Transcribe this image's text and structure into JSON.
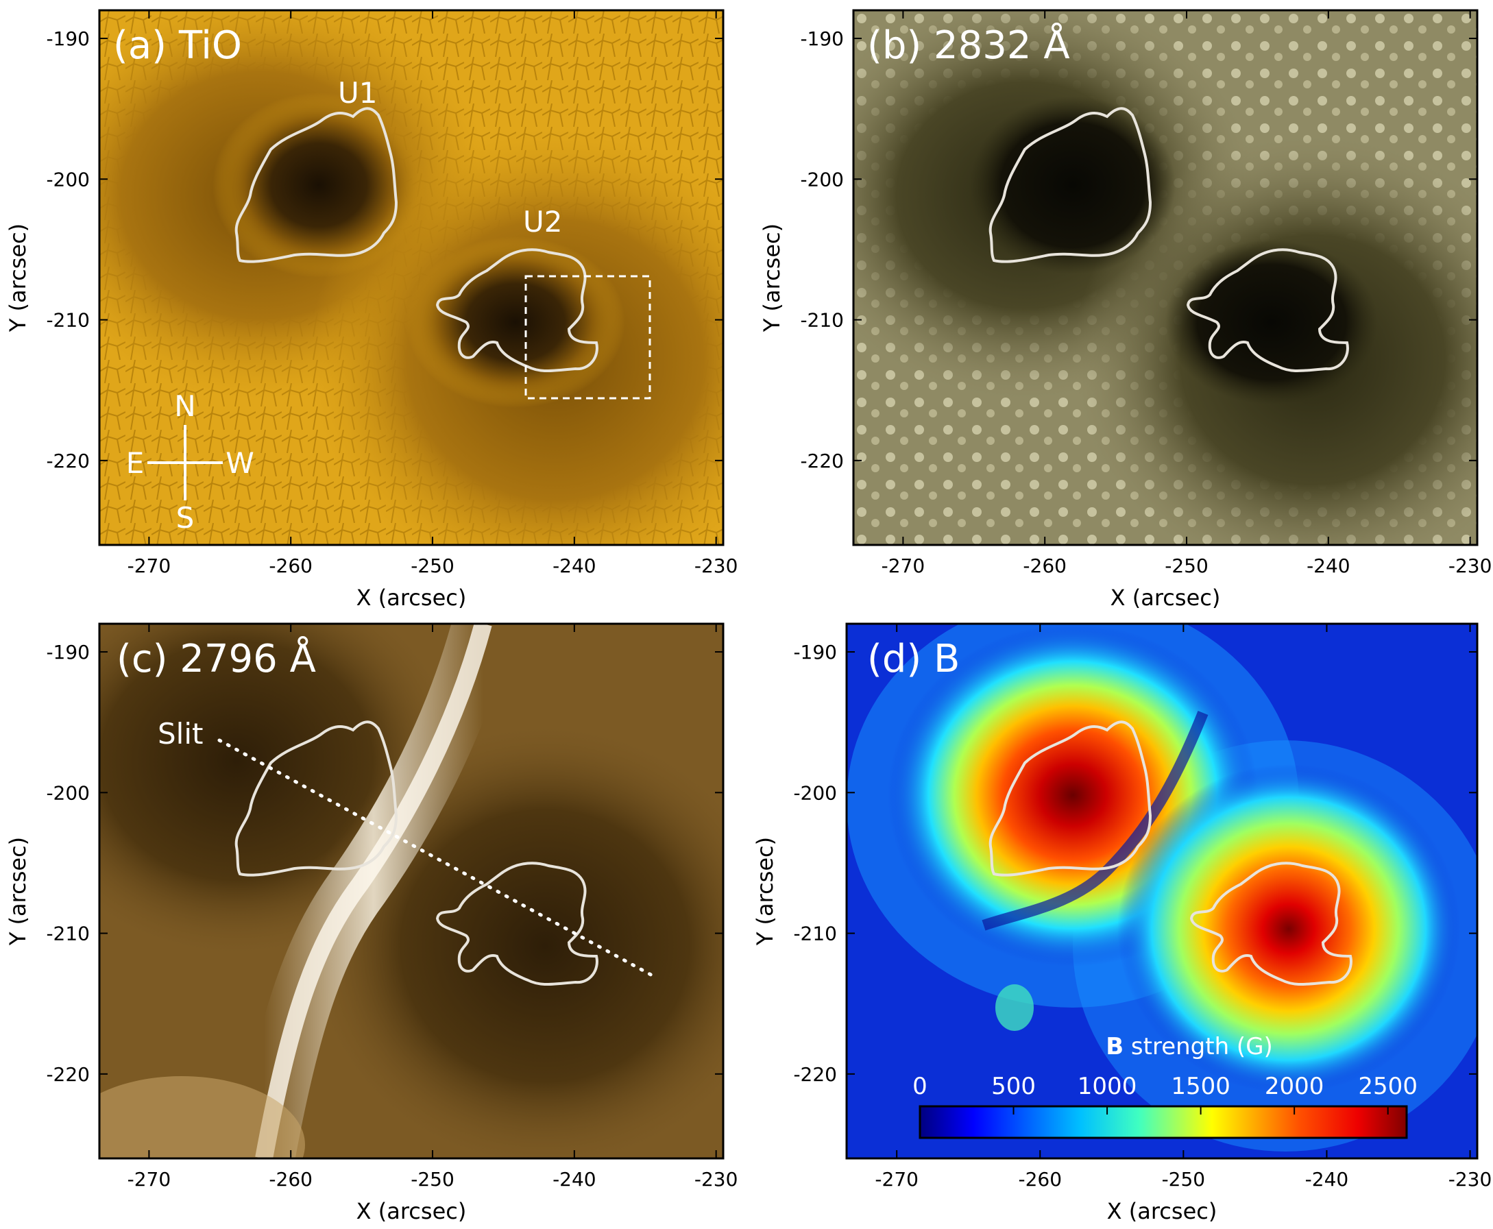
{
  "colors": {
    "tio_base": "#d49a14",
    "c2832_base": "#8a845e",
    "c2796_base": "#7c5a24",
    "b_low": "#0b2fd6",
    "contour": "#e8e4dc"
  },
  "xaxis": {
    "label": "X (arcsec)",
    "range": [
      -273.5,
      -229.5
    ],
    "ticks": [
      "-270",
      "-260",
      "-250",
      "-240",
      "-230"
    ]
  },
  "yaxis": {
    "label": "Y (arcsec)",
    "range": [
      -226,
      -188
    ],
    "ticks": [
      "-190",
      "-200",
      "-210",
      "-220"
    ]
  },
  "panels": [
    {
      "id": "a",
      "title": "(a) TiO",
      "image": "sunspot-tio-image"
    },
    {
      "id": "b",
      "title": "(b) 2832 Å",
      "image": "sunspot-2832-image"
    },
    {
      "id": "c",
      "title": "(c) 2796 Å",
      "image": "sunspot-2796-image"
    },
    {
      "id": "d",
      "title": "(d) B",
      "image": "magnetic-field-map"
    }
  ],
  "annotations": {
    "u1": "U1",
    "u2": "U2",
    "compass": {
      "n": "N",
      "s": "S",
      "e": "E",
      "w": "W"
    },
    "slit": "Slit"
  },
  "colorbar": {
    "label_bold": "B",
    "label_rest": " strength (G)",
    "ticks": [
      "0",
      "500",
      "1000",
      "1500",
      "2000",
      "2500"
    ],
    "range": [
      0,
      2600
    ],
    "colors": [
      "#000080",
      "#0000ff",
      "#0080ff",
      "#00ffff",
      "#80ff80",
      "#ffff00",
      "#ff8000",
      "#ff0000",
      "#800000"
    ]
  }
}
